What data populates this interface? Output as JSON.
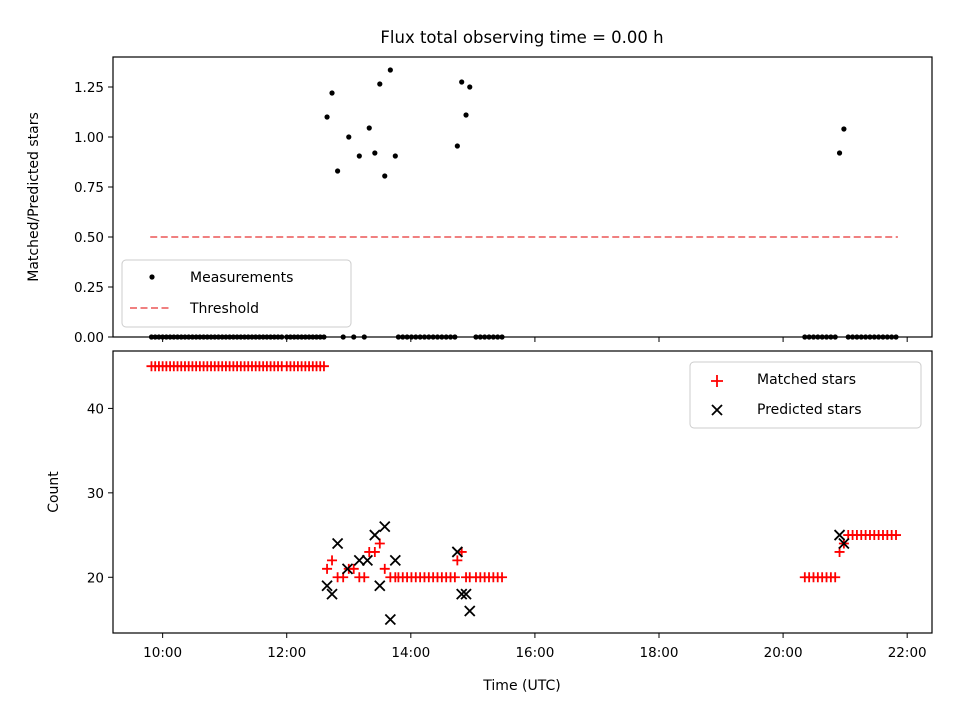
{
  "chart_data": [
    {
      "type": "scatter",
      "title": "Flux total observing time = 0.00 h",
      "xlabel": "",
      "ylabel": "Matched/Predicted stars",
      "xlim": [
        9.2,
        22.4
      ],
      "ylim": [
        0.0,
        1.4
      ],
      "yticks": [
        0.0,
        0.25,
        0.5,
        0.75,
        1.0,
        1.25
      ],
      "ytick_labels": [
        "0.00",
        "0.25",
        "0.50",
        "0.75",
        "1.00",
        "1.25"
      ],
      "xticks": [
        10,
        12,
        14,
        16,
        18,
        20,
        22
      ],
      "xtick_labels": [],
      "legend_position": "lower-left",
      "series": [
        {
          "name": "Measurements",
          "marker": "dot",
          "color": "#000000",
          "x": [
            9.82,
            9.88,
            9.94,
            10.0,
            10.06,
            10.12,
            10.18,
            10.24,
            10.3,
            10.36,
            10.42,
            10.48,
            10.54,
            10.6,
            10.66,
            10.72,
            10.78,
            10.84,
            10.9,
            10.96,
            11.02,
            11.08,
            11.14,
            11.2,
            11.26,
            11.32,
            11.38,
            11.44,
            11.5,
            11.56,
            11.62,
            11.68,
            11.74,
            11.8,
            11.86,
            11.92,
            12.0,
            12.06,
            12.12,
            12.18,
            12.24,
            12.3,
            12.36,
            12.42,
            12.48,
            12.54,
            12.6,
            12.65,
            12.73,
            12.82,
            12.91,
            13.0,
            13.08,
            13.17,
            13.25,
            13.33,
            13.42,
            13.5,
            13.58,
            13.67,
            13.75,
            13.8,
            13.87,
            13.94,
            14.01,
            14.08,
            14.15,
            14.22,
            14.29,
            14.36,
            14.43,
            14.5,
            14.57,
            14.64,
            14.71,
            14.75,
            14.82,
            14.89,
            14.95,
            15.05,
            15.12,
            15.19,
            15.26,
            15.33,
            15.4,
            15.47,
            20.35,
            20.42,
            20.49,
            20.56,
            20.63,
            20.7,
            20.77,
            20.84,
            20.91,
            20.98,
            21.05,
            21.12,
            21.19,
            21.26,
            21.33,
            21.4,
            21.47,
            21.54,
            21.61,
            21.68,
            21.75,
            21.82
          ],
          "y": [
            0,
            0,
            0,
            0,
            0,
            0,
            0,
            0,
            0,
            0,
            0,
            0,
            0,
            0,
            0,
            0,
            0,
            0,
            0,
            0,
            0,
            0,
            0,
            0,
            0,
            0,
            0,
            0,
            0,
            0,
            0,
            0,
            0,
            0,
            0,
            0,
            0,
            0,
            0,
            0,
            0,
            0,
            0,
            0,
            0,
            0,
            0,
            1.1,
            1.22,
            0.83,
            0,
            1.0,
            0,
            0.905,
            0,
            1.045,
            0.92,
            1.265,
            0.805,
            1.335,
            0.905,
            0,
            0,
            0,
            0,
            0,
            0,
            0,
            0,
            0,
            0,
            0,
            0,
            0,
            0,
            0.955,
            1.275,
            1.11,
            1.25,
            0,
            0,
            0,
            0,
            0,
            0,
            0,
            0,
            0,
            0,
            0,
            0,
            0,
            0,
            0,
            0.92,
            1.04,
            0,
            0,
            0,
            0,
            0,
            0,
            0,
            0,
            0,
            0,
            0,
            0
          ]
        },
        {
          "name": "Threshold",
          "style": "dashed-line",
          "color": "#f08080",
          "x": [
            9.8,
            21.85
          ],
          "y": [
            0.5,
            0.5
          ]
        }
      ]
    },
    {
      "type": "scatter",
      "title": "",
      "xlabel": "Time (UTC)",
      "ylabel": "Count",
      "xlim": [
        9.2,
        22.4
      ],
      "ylim": [
        13.4,
        46.8
      ],
      "yticks": [
        20,
        30,
        40
      ],
      "ytick_labels": [
        "20",
        "30",
        "40"
      ],
      "xticks": [
        10,
        12,
        14,
        16,
        18,
        20,
        22
      ],
      "xtick_labels": [
        "10:00",
        "12:00",
        "14:00",
        "16:00",
        "18:00",
        "20:00",
        "22:00"
      ],
      "legend_position": "upper-right",
      "series": [
        {
          "name": "Matched stars",
          "marker": "plus",
          "color": "#ff0000",
          "x": [
            9.82,
            9.88,
            9.94,
            10.0,
            10.06,
            10.12,
            10.18,
            10.24,
            10.3,
            10.36,
            10.42,
            10.48,
            10.54,
            10.6,
            10.66,
            10.72,
            10.78,
            10.84,
            10.9,
            10.96,
            11.02,
            11.08,
            11.14,
            11.2,
            11.26,
            11.32,
            11.38,
            11.44,
            11.5,
            11.56,
            11.62,
            11.68,
            11.74,
            11.8,
            11.86,
            11.92,
            12.0,
            12.06,
            12.12,
            12.18,
            12.24,
            12.3,
            12.36,
            12.42,
            12.48,
            12.54,
            12.6,
            12.65,
            12.73,
            12.82,
            12.91,
            13.0,
            13.08,
            13.17,
            13.25,
            13.33,
            13.42,
            13.5,
            13.58,
            13.67,
            13.75,
            13.8,
            13.87,
            13.94,
            14.01,
            14.08,
            14.15,
            14.22,
            14.29,
            14.36,
            14.43,
            14.5,
            14.57,
            14.64,
            14.71,
            14.75,
            14.82,
            14.89,
            14.95,
            15.05,
            15.12,
            15.19,
            15.26,
            15.33,
            15.4,
            15.47,
            20.35,
            20.42,
            20.49,
            20.56,
            20.63,
            20.7,
            20.77,
            20.84,
            20.91,
            20.98,
            21.05,
            21.12,
            21.19,
            21.26,
            21.33,
            21.4,
            21.47,
            21.54,
            21.61,
            21.68,
            21.75,
            21.82
          ],
          "y": [
            45,
            45,
            45,
            45,
            45,
            45,
            45,
            45,
            45,
            45,
            45,
            45,
            45,
            45,
            45,
            45,
            45,
            45,
            45,
            45,
            45,
            45,
            45,
            45,
            45,
            45,
            45,
            45,
            45,
            45,
            45,
            45,
            45,
            45,
            45,
            45,
            45,
            45,
            45,
            45,
            45,
            45,
            45,
            45,
            45,
            45,
            45,
            21,
            22,
            20,
            20,
            21,
            21,
            20,
            20,
            23,
            23,
            24,
            21,
            20,
            20,
            20,
            20,
            20,
            20,
            20,
            20,
            20,
            20,
            20,
            20,
            20,
            20,
            20,
            20,
            22,
            23,
            20,
            20,
            20,
            20,
            20,
            20,
            20,
            20,
            20,
            20,
            20,
            20,
            20,
            20,
            20,
            20,
            20,
            23,
            24,
            25,
            25,
            25,
            25,
            25,
            25,
            25,
            25,
            25,
            25,
            25,
            25
          ]
        },
        {
          "name": "Predicted stars",
          "marker": "x",
          "color": "#000000",
          "x": [
            12.65,
            12.73,
            12.82,
            12.98,
            13.17,
            13.3,
            13.42,
            13.5,
            13.58,
            13.67,
            13.75,
            14.75,
            14.82,
            14.89,
            14.95,
            20.91,
            20.98
          ],
          "y": [
            19,
            18,
            24,
            21,
            22,
            22,
            25,
            19,
            26,
            15,
            22,
            23,
            18,
            18,
            16,
            25,
            24
          ]
        }
      ]
    }
  ]
}
